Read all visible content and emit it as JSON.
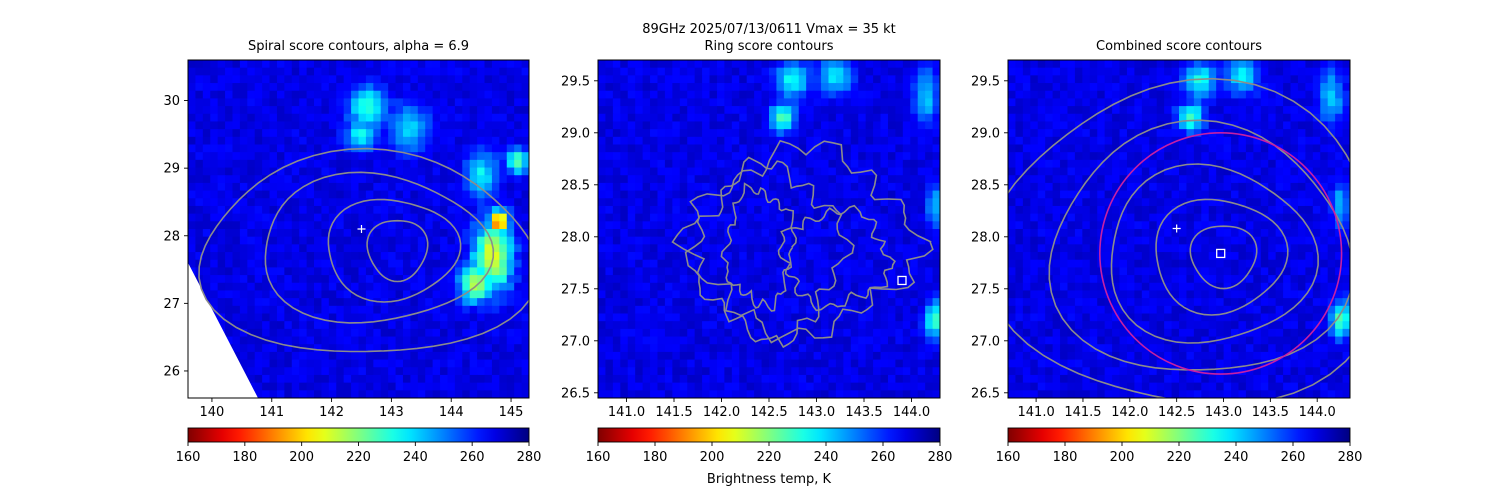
{
  "suptitle": "89GHz  2025/07/13/0611    Vmax = 35 kt",
  "colorbar": {
    "label": "Brightness temp, K",
    "colormap": "jet_r",
    "range": [
      160,
      280
    ],
    "ticks": [
      "160",
      "180",
      "200",
      "220",
      "240",
      "260",
      "280"
    ]
  },
  "chart_data": [
    {
      "type": "heatmap",
      "title": "Spiral score contours, alpha =  6.9",
      "xlim": [
        139.6,
        145.3
      ],
      "ylim": [
        25.6,
        30.6
      ],
      "xticks": [
        140,
        141,
        142,
        143,
        144,
        145
      ],
      "yticks": [
        26,
        27,
        28,
        29,
        30
      ],
      "xticklabels": [
        "140",
        "141",
        "142",
        "143",
        "144",
        "145"
      ],
      "yticklabels": [
        "26",
        "27",
        "28",
        "29",
        "30"
      ],
      "markers": [
        {
          "type": "plus",
          "x": 142.5,
          "y": 28.1,
          "color": "#ffffff"
        }
      ],
      "circle": null,
      "missing_data_corner": true,
      "cold_features": [
        {
          "x": 142.6,
          "y": 29.9,
          "sx": 0.35,
          "sy": 0.35,
          "t": 232
        },
        {
          "x": 142.5,
          "y": 29.5,
          "sx": 0.3,
          "sy": 0.25,
          "t": 236
        },
        {
          "x": 143.3,
          "y": 29.6,
          "sx": 0.35,
          "sy": 0.4,
          "t": 242
        },
        {
          "x": 144.5,
          "y": 28.9,
          "sx": 0.3,
          "sy": 0.4,
          "t": 238
        },
        {
          "x": 144.7,
          "y": 27.7,
          "sx": 0.35,
          "sy": 0.55,
          "t": 210
        },
        {
          "x": 144.8,
          "y": 28.2,
          "sx": 0.18,
          "sy": 0.18,
          "t": 185
        },
        {
          "x": 144.4,
          "y": 27.3,
          "sx": 0.3,
          "sy": 0.3,
          "t": 215
        },
        {
          "x": 145.1,
          "y": 29.1,
          "sx": 0.2,
          "sy": 0.2,
          "t": 225
        }
      ],
      "contours": [
        {
          "cx": 143.1,
          "cy": 27.8,
          "rx": 0.5,
          "ry": 0.45
        },
        {
          "cx": 143.0,
          "cy": 27.8,
          "rx": 1.1,
          "ry": 0.75
        },
        {
          "cx": 142.7,
          "cy": 27.8,
          "rx": 1.9,
          "ry": 1.1
        },
        {
          "cx": 142.6,
          "cy": 27.7,
          "rx": 2.8,
          "ry": 1.5
        }
      ]
    },
    {
      "type": "heatmap",
      "title": "Ring score contours",
      "xlim": [
        140.7,
        144.3
      ],
      "ylim": [
        26.45,
        29.7
      ],
      "xticks": [
        141.0,
        141.5,
        142.0,
        142.5,
        143.0,
        143.5,
        144.0
      ],
      "yticks": [
        26.5,
        27.0,
        27.5,
        28.0,
        28.5,
        29.0,
        29.5
      ],
      "xticklabels": [
        "141.0",
        "141.5",
        "142.0",
        "142.5",
        "143.0",
        "143.5",
        "144.0"
      ],
      "yticklabels": [
        "26.5",
        "27.0",
        "27.5",
        "28.0",
        "28.5",
        "29.0",
        "29.5"
      ],
      "markers": [
        {
          "type": "square",
          "x": 143.9,
          "y": 27.58,
          "color": "#ffffff"
        }
      ],
      "circle": null,
      "missing_data_corner": false,
      "cold_features": [
        {
          "x": 142.75,
          "y": 29.5,
          "sx": 0.2,
          "sy": 0.2,
          "t": 236
        },
        {
          "x": 142.65,
          "y": 29.15,
          "sx": 0.15,
          "sy": 0.15,
          "t": 228
        },
        {
          "x": 143.2,
          "y": 29.55,
          "sx": 0.2,
          "sy": 0.2,
          "t": 240
        },
        {
          "x": 144.15,
          "y": 29.35,
          "sx": 0.15,
          "sy": 0.3,
          "t": 244
        },
        {
          "x": 144.25,
          "y": 28.3,
          "sx": 0.1,
          "sy": 0.25,
          "t": 245
        },
        {
          "x": 144.25,
          "y": 27.2,
          "sx": 0.12,
          "sy": 0.2,
          "t": 228
        }
      ],
      "contours": [
        {
          "cx": 142.4,
          "cy": 27.9,
          "rx": 0.35,
          "ry": 0.55,
          "wiggle": true
        },
        {
          "cx": 142.5,
          "cy": 27.85,
          "rx": 0.75,
          "ry": 0.8,
          "wiggle": true
        },
        {
          "cx": 142.85,
          "cy": 27.95,
          "rx": 1.15,
          "ry": 0.85,
          "wiggle": true
        },
        {
          "cx": 143.2,
          "cy": 27.8,
          "rx": 0.55,
          "ry": 0.45,
          "wiggle": true
        }
      ]
    },
    {
      "type": "heatmap",
      "title": "Combined score contours",
      "xlim": [
        140.7,
        144.35
      ],
      "ylim": [
        26.45,
        29.7
      ],
      "xticks": [
        141.0,
        141.5,
        142.0,
        142.5,
        143.0,
        143.5,
        144.0
      ],
      "yticks": [
        26.5,
        27.0,
        27.5,
        28.0,
        28.5,
        29.0,
        29.5
      ],
      "xticklabels": [
        "141.0",
        "141.5",
        "142.0",
        "142.5",
        "143.0",
        "143.5",
        "144.0"
      ],
      "yticklabels": [
        "26.5",
        "27.0",
        "27.5",
        "28.0",
        "28.5",
        "29.0",
        "29.5"
      ],
      "markers": [
        {
          "type": "plus",
          "x": 142.5,
          "y": 28.08,
          "color": "#ffffff"
        },
        {
          "type": "square",
          "x": 142.97,
          "y": 27.84,
          "color": "#ffffff"
        }
      ],
      "circle": {
        "cx": 142.97,
        "cy": 27.84,
        "rx": 1.29,
        "ry": 1.16,
        "color": "#c71fa5"
      },
      "missing_data_corner": false,
      "cold_features": [
        {
          "x": 142.75,
          "y": 29.5,
          "sx": 0.2,
          "sy": 0.2,
          "t": 236
        },
        {
          "x": 142.65,
          "y": 29.15,
          "sx": 0.15,
          "sy": 0.15,
          "t": 228
        },
        {
          "x": 143.2,
          "y": 29.55,
          "sx": 0.2,
          "sy": 0.2,
          "t": 240
        },
        {
          "x": 144.15,
          "y": 29.35,
          "sx": 0.15,
          "sy": 0.3,
          "t": 244
        },
        {
          "x": 144.25,
          "y": 28.3,
          "sx": 0.1,
          "sy": 0.25,
          "t": 245
        },
        {
          "x": 144.25,
          "y": 27.2,
          "sx": 0.12,
          "sy": 0.2,
          "t": 228
        }
      ],
      "contours": [
        {
          "cx": 143.0,
          "cy": 27.82,
          "rx": 0.35,
          "ry": 0.3
        },
        {
          "cx": 142.95,
          "cy": 27.82,
          "rx": 0.7,
          "ry": 0.55
        },
        {
          "cx": 142.85,
          "cy": 27.82,
          "rx": 1.1,
          "ry": 0.85
        },
        {
          "cx": 142.75,
          "cy": 27.85,
          "rx": 1.6,
          "ry": 1.2
        },
        {
          "cx": 142.65,
          "cy": 27.9,
          "rx": 2.1,
          "ry": 1.55
        }
      ]
    }
  ]
}
